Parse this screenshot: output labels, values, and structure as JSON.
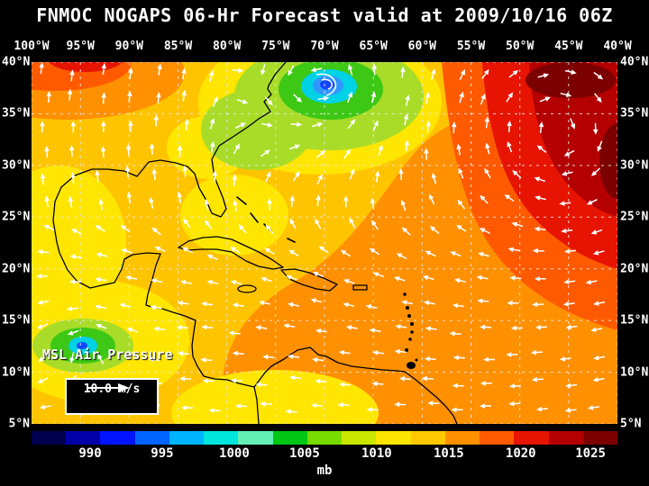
{
  "title": "FNMOC NOGAPS 06-Hr Forecast valid at 2009/10/16 06Z",
  "map": {
    "field_label": "MSL Air Pressure",
    "wind_scale_label": "10.0 m/s",
    "lon_labels": [
      "100°W",
      "95°W",
      "90°W",
      "85°W",
      "80°W",
      "75°W",
      "70°W",
      "65°W",
      "60°W",
      "55°W",
      "50°W",
      "45°W",
      "40°W"
    ],
    "lat_labels": [
      "40°N",
      "35°N",
      "30°N",
      "25°N",
      "20°N",
      "15°N",
      "10°N",
      "5°N"
    ]
  },
  "colorbar": {
    "unit": "mb",
    "tick_labels": [
      "990",
      "995",
      "1000",
      "1005",
      "1010",
      "1015",
      "1020",
      "1025"
    ],
    "tick_positions": [
      0.1,
      0.223,
      0.346,
      0.466,
      0.589,
      0.712,
      0.835,
      0.954
    ],
    "colors": [
      "#00004e",
      "#0000a8",
      "#0014ff",
      "#0064ff",
      "#00b4ff",
      "#00e6dc",
      "#64f0b4",
      "#00c814",
      "#78dc00",
      "#c8e600",
      "#ffe600",
      "#ffc800",
      "#ff9000",
      "#ff5a00",
      "#e61400",
      "#b40000",
      "#7d0000"
    ]
  },
  "colors": {
    "background": "#000000",
    "text": "#ffffff",
    "grid": "#e8e8e8",
    "coastline": "#000000",
    "wind_arrow": "#ffffff"
  }
}
